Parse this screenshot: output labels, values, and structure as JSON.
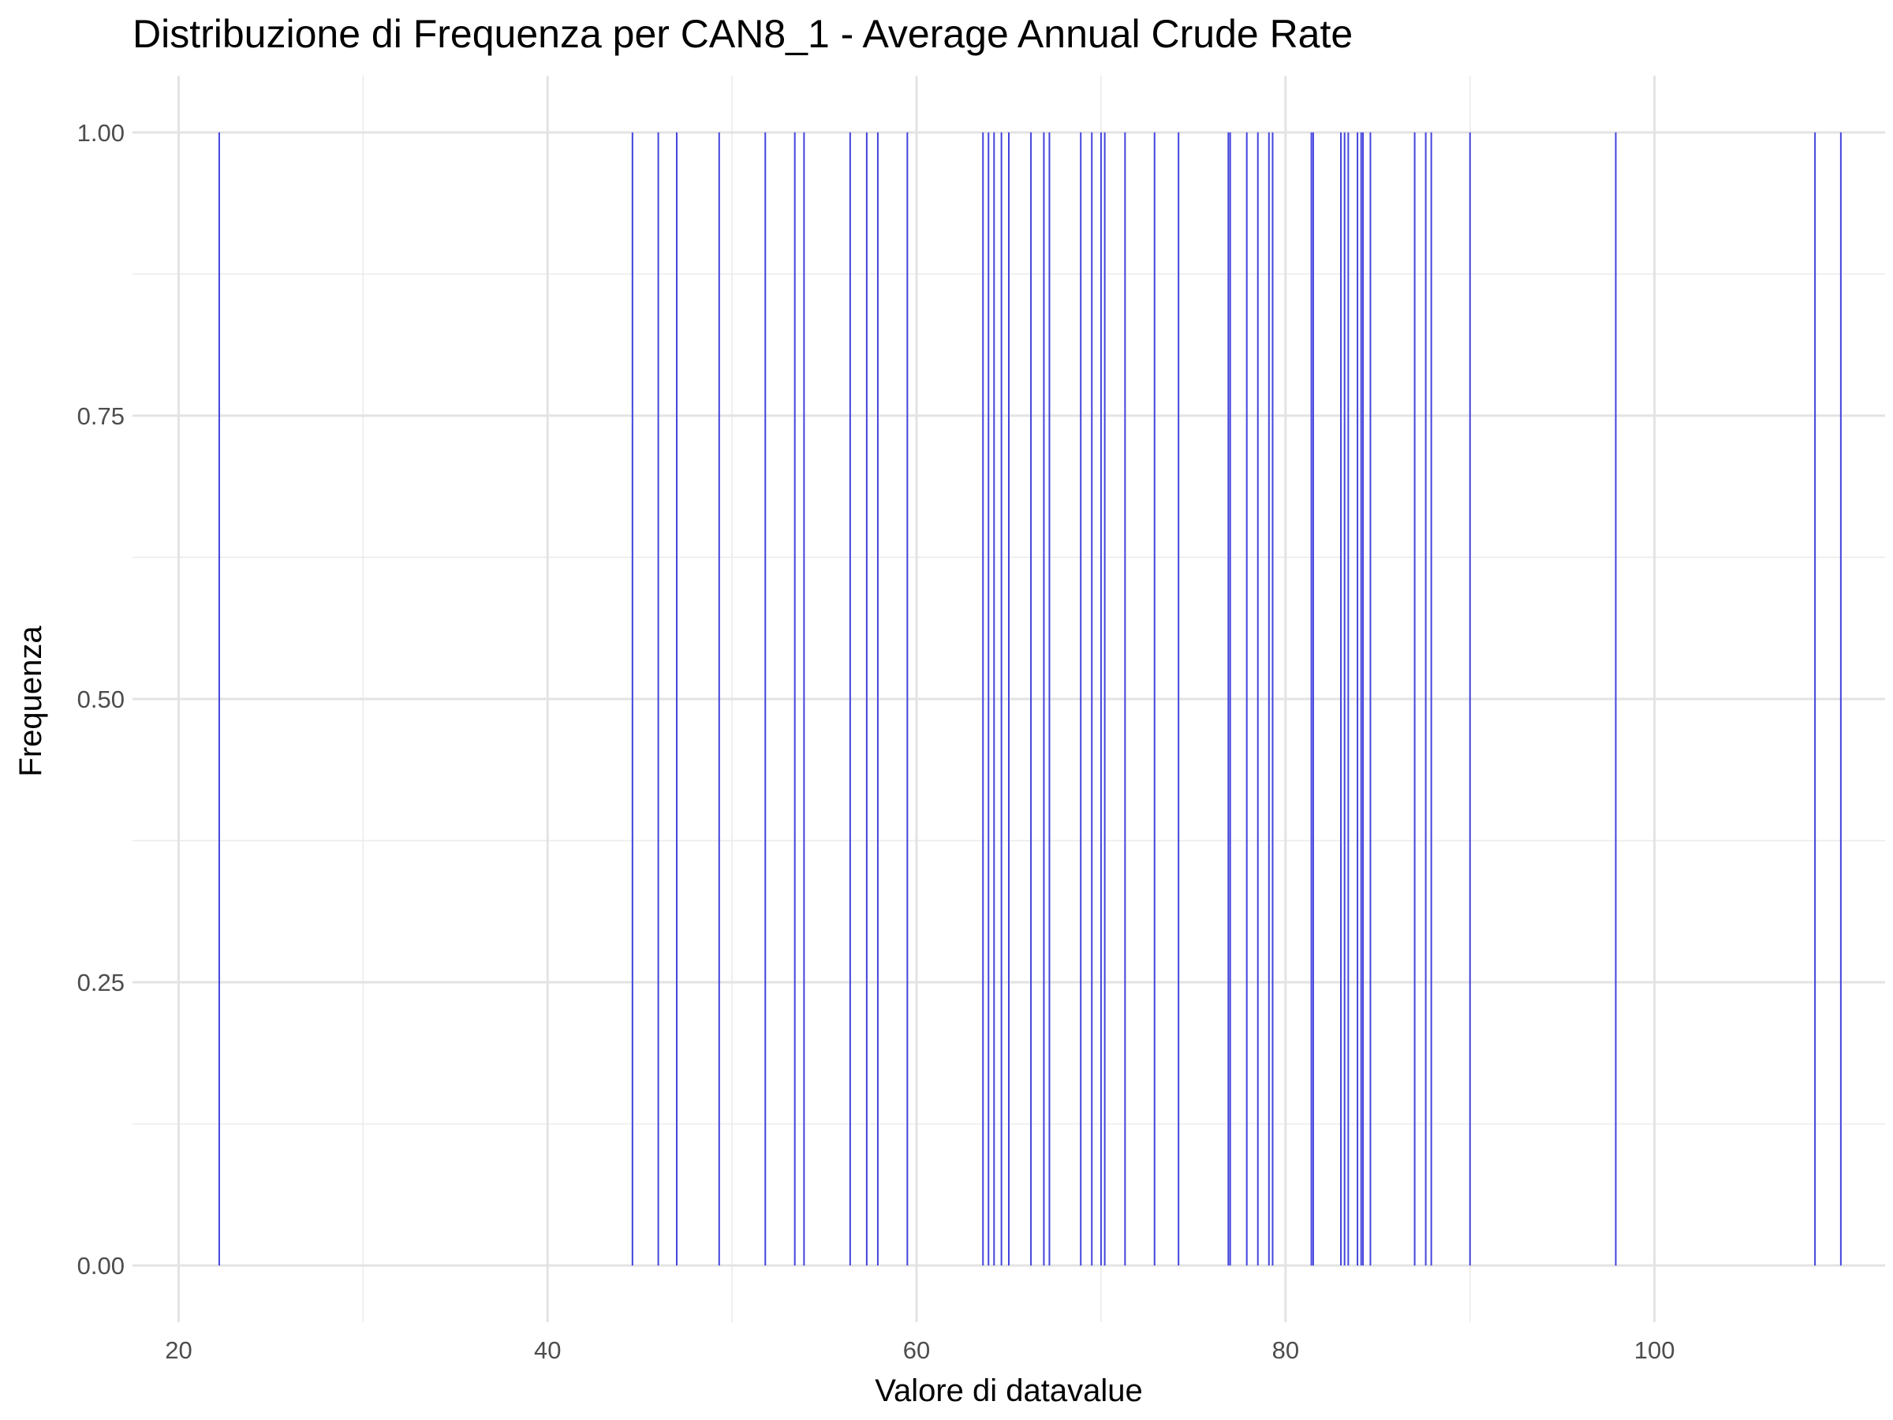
{
  "chart_data": {
    "type": "bar",
    "title": "Distribuzione di Frequenza per CAN8_1 - Average Annual Crude Rate",
    "xlabel": "Valore di datavalue",
    "ylabel": "Frequenza",
    "xlim": [
      17.5,
      112.5
    ],
    "ylim": [
      -0.05,
      1.05
    ],
    "x_ticks": [
      "20",
      "40",
      "60",
      "80",
      "100"
    ],
    "x_tick_values": [
      20,
      40,
      60,
      80,
      100
    ],
    "y_ticks": [
      "0.00",
      "0.25",
      "0.50",
      "0.75",
      "1.00"
    ],
    "y_tick_values": [
      0,
      0.25,
      0.5,
      0.75,
      1.0
    ],
    "grid": true,
    "bar_color": "#4444dd",
    "x": [
      22.2,
      44.6,
      46.0,
      47.0,
      49.3,
      51.8,
      53.4,
      53.9,
      56.4,
      57.3,
      57.9,
      59.5,
      63.6,
      63.9,
      64.2,
      64.6,
      65.0,
      66.2,
      66.9,
      67.2,
      68.9,
      69.5,
      70.0,
      70.2,
      71.3,
      72.9,
      74.2,
      76.9,
      77.0,
      77.9,
      78.5,
      79.1,
      79.3,
      81.4,
      81.5,
      83.0,
      83.2,
      83.4,
      83.9,
      84.1,
      84.2,
      84.6,
      87.0,
      87.6,
      87.9,
      90.0,
      97.9,
      108.7,
      110.1
    ],
    "values": [
      1,
      1,
      1,
      1,
      1,
      1,
      1,
      1,
      1,
      1,
      1,
      1,
      1,
      1,
      1,
      1,
      1,
      1,
      1,
      1,
      1,
      1,
      1,
      1,
      1,
      1,
      1,
      1,
      1,
      1,
      1,
      1,
      1,
      1,
      1,
      1,
      1,
      1,
      1,
      1,
      1,
      1,
      1,
      1,
      1,
      1,
      1,
      1,
      1
    ]
  }
}
